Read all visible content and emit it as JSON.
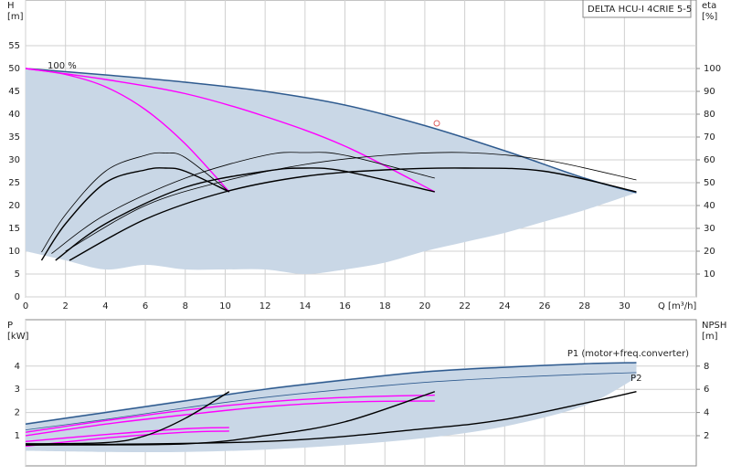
{
  "chart_data": [
    {
      "type": "line",
      "title": "DELTA HCU-I 4CRIE 5-5",
      "xlabel": "Q [m³/h]",
      "ylabel": [
        "H",
        "[m]"
      ],
      "y2label": [
        "eta",
        "[%]"
      ],
      "annotations": [
        "100 %"
      ],
      "xlim": [
        0,
        33.6
      ],
      "xticks": [
        0,
        2,
        4,
        6,
        8,
        10,
        12,
        14,
        16,
        18,
        20,
        22,
        24,
        26,
        28,
        30
      ],
      "ylim": [
        0,
        65
      ],
      "yticks": [
        0,
        5,
        10,
        15,
        20,
        25,
        30,
        35,
        40,
        45,
        50,
        55
      ],
      "y2lim": [
        0,
        130
      ],
      "y2ticks": [
        10,
        20,
        30,
        40,
        50,
        60,
        70,
        80,
        90,
        100
      ],
      "grid": true,
      "series": [
        {
          "style": "area",
          "color": "#c9d7e6",
          "x": [
            0,
            2,
            4,
            6,
            8,
            10,
            12,
            14,
            16,
            18,
            20,
            22,
            24,
            26,
            28,
            30.6
          ],
          "values": [
            50,
            49.3,
            48.6,
            47.8,
            47,
            46,
            45,
            43.8,
            42,
            40,
            37.5,
            35,
            32,
            29,
            26,
            22.8
          ],
          "lower": [
            10,
            8,
            6,
            7,
            6,
            6,
            6,
            5,
            6,
            7.5,
            10,
            12,
            14,
            16.5,
            19,
            22.8
          ]
        },
        {
          "style": "edge",
          "color": "#2f5b8f",
          "x": [
            0,
            4,
            8,
            12,
            16,
            20,
            24,
            28,
            30.6
          ],
          "values": [
            50,
            48.6,
            47,
            45,
            42,
            37.5,
            32,
            26,
            22.8
          ]
        },
        {
          "style": "thick",
          "color": "#ff00ff",
          "x": [
            0,
            2,
            4,
            6,
            8,
            10.2
          ],
          "values": [
            50,
            48.7,
            46,
            41,
            33.5,
            23
          ]
        },
        {
          "style": "thick",
          "color": "#ff00ff",
          "x": [
            0,
            4,
            8,
            12,
            16,
            20.5
          ],
          "values": [
            50,
            47.6,
            44.5,
            39.5,
            33,
            23
          ]
        },
        {
          "style": "thick",
          "color": "#000000",
          "axis": "y2",
          "x": [
            0.8,
            2,
            4,
            6,
            7,
            8,
            10.2
          ],
          "values": [
            16,
            32,
            50,
            55.6,
            56.4,
            55,
            46
          ]
        },
        {
          "style": "thin",
          "color": "#000000",
          "axis": "y2",
          "x": [
            0.8,
            2,
            4,
            6,
            7,
            8,
            10.2
          ],
          "values": [
            19.6,
            36,
            55,
            62,
            63,
            61,
            46
          ]
        },
        {
          "style": "thick",
          "color": "#000000",
          "axis": "y2",
          "x": [
            1.5,
            4,
            8,
            12,
            14,
            16,
            20.5
          ],
          "values": [
            16,
            32,
            48,
            55,
            56.4,
            55,
            46
          ]
        },
        {
          "style": "thin",
          "color": "#000000",
          "axis": "y2",
          "x": [
            1.3,
            4,
            8,
            12,
            14,
            16,
            20.5
          ],
          "values": [
            19,
            36,
            52,
            62,
            63.2,
            62,
            52
          ]
        },
        {
          "style": "thick",
          "color": "#000000",
          "axis": "y2",
          "x": [
            2.2,
            6,
            10,
            14,
            18,
            22,
            26,
            30.6
          ],
          "values": [
            16,
            34,
            46,
            52.8,
            55.6,
            56.4,
            55,
            46
          ]
        },
        {
          "style": "thin",
          "color": "#000000",
          "axis": "y2",
          "x": [
            2,
            6,
            10,
            14,
            18,
            22,
            26,
            30.6
          ],
          "values": [
            20,
            40,
            50.8,
            58,
            62,
            63.2,
            60,
            51.2
          ]
        },
        {
          "style": "marker",
          "color": "#e06060",
          "x": [
            20.6
          ],
          "values": [
            38
          ]
        }
      ]
    },
    {
      "type": "line",
      "ylabel": [
        "P",
        "[kW]"
      ],
      "y2label": [
        "NPSH",
        "[m]"
      ],
      "xlim": [
        0,
        33.6
      ],
      "ylim": [
        -0.3,
        6
      ],
      "yticks": [
        1,
        2,
        3,
        4
      ],
      "y2lim": [
        -0.6,
        12
      ],
      "y2ticks": [
        2,
        4,
        6,
        8
      ],
      "grid": true,
      "series": [
        {
          "style": "area",
          "color": "#c9d7e6",
          "x": [
            0,
            4,
            8,
            12,
            16,
            20,
            24,
            28,
            30.6
          ],
          "values": [
            1.55,
            2.05,
            2.55,
            3.05,
            3.45,
            3.8,
            4.0,
            4.12,
            4.15
          ],
          "lower": [
            0.35,
            0.3,
            0.3,
            0.4,
            0.6,
            0.9,
            1.4,
            2.3,
            3.5
          ]
        },
        {
          "name": "P1 (motor+freq.converter)",
          "style": "edge",
          "color": "#2f5b8f",
          "x": [
            0,
            4,
            8,
            12,
            16,
            20,
            24,
            28,
            30.6
          ],
          "values": [
            1.5,
            2.0,
            2.5,
            3.0,
            3.4,
            3.75,
            3.95,
            4.1,
            4.15
          ]
        },
        {
          "name": "P2",
          "style": "thin",
          "color": "#2f5b8f",
          "x": [
            0,
            4,
            8,
            12,
            16,
            20,
            24,
            28,
            30.6
          ],
          "values": [
            1.25,
            1.7,
            2.2,
            2.65,
            3.0,
            3.3,
            3.5,
            3.65,
            3.72
          ]
        },
        {
          "style": "thick",
          "color": "#ff00ff",
          "x": [
            0,
            4,
            8,
            10.2
          ],
          "values": [
            0.75,
            1.05,
            1.3,
            1.35
          ]
        },
        {
          "style": "thick",
          "color": "#ff00ff",
          "x": [
            0,
            4,
            8,
            10.2
          ],
          "values": [
            0.55,
            0.9,
            1.15,
            1.2
          ]
        },
        {
          "style": "thick",
          "color": "#ff00ff",
          "x": [
            0,
            4,
            8,
            12,
            16,
            20.5
          ],
          "values": [
            1.15,
            1.65,
            2.1,
            2.45,
            2.65,
            2.75
          ]
        },
        {
          "style": "thick",
          "color": "#ff00ff",
          "x": [
            0,
            4,
            8,
            12,
            16,
            20.5
          ],
          "values": [
            1.0,
            1.5,
            1.9,
            2.25,
            2.45,
            2.5
          ]
        },
        {
          "style": "thick",
          "color": "#000000",
          "axis": "y2",
          "x": [
            0,
            4,
            6,
            8,
            10.2
          ],
          "values": [
            1.3,
            1.4,
            2.0,
            3.5,
            5.8
          ]
        },
        {
          "style": "thick",
          "color": "#000000",
          "axis": "y2",
          "x": [
            0,
            8,
            12,
            16,
            20.5
          ],
          "values": [
            1.2,
            1.3,
            2.0,
            3.2,
            5.8
          ]
        },
        {
          "style": "thick",
          "color": "#000000",
          "axis": "y2",
          "x": [
            0,
            12,
            20,
            24,
            28,
            30.6
          ],
          "values": [
            1.2,
            1.5,
            2.6,
            3.4,
            4.8,
            5.8
          ]
        }
      ]
    }
  ]
}
